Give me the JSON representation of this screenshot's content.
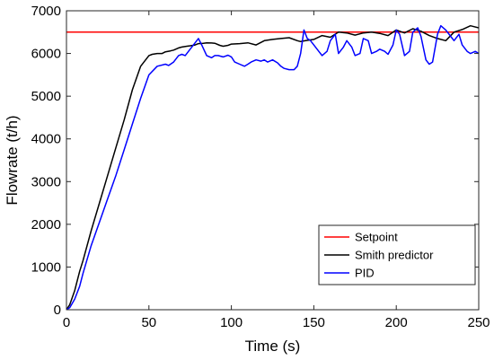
{
  "chart_data": {
    "type": "line",
    "title": "",
    "xlabel": "Time (s)",
    "ylabel": "Flowrate (t/h)",
    "xlim": [
      0,
      250
    ],
    "ylim": [
      0,
      7000
    ],
    "xticks": [
      0,
      50,
      100,
      150,
      200,
      250
    ],
    "yticks": [
      0,
      1000,
      2000,
      3000,
      4000,
      5000,
      6000,
      7000
    ],
    "grid": false,
    "legend_position": "bottom-right",
    "series": [
      {
        "name": "Setpoint",
        "color": "#ff0000",
        "x": [
          0,
          250
        ],
        "y": [
          6500,
          6500
        ]
      },
      {
        "name": "Smith predictor",
        "color": "#000000",
        "x": [
          0,
          2,
          5,
          8,
          10,
          15,
          20,
          25,
          30,
          35,
          40,
          45,
          50,
          52,
          55,
          58,
          60,
          63,
          65,
          68,
          70,
          73,
          75,
          78,
          80,
          83,
          85,
          88,
          90,
          93,
          95,
          98,
          100,
          105,
          110,
          115,
          120,
          125,
          130,
          135,
          140,
          142,
          145,
          150,
          155,
          160,
          165,
          170,
          175,
          180,
          185,
          190,
          195,
          200,
          205,
          210,
          215,
          220,
          225,
          230,
          235,
          240,
          245,
          250
        ],
        "y": [
          0,
          120,
          450,
          900,
          1150,
          1850,
          2500,
          3150,
          3800,
          4450,
          5150,
          5700,
          5950,
          5980,
          6000,
          6000,
          6040,
          6060,
          6080,
          6130,
          6150,
          6170,
          6180,
          6200,
          6230,
          6240,
          6250,
          6245,
          6240,
          6190,
          6170,
          6190,
          6220,
          6230,
          6250,
          6200,
          6300,
          6330,
          6350,
          6370,
          6300,
          6280,
          6300,
          6330,
          6420,
          6380,
          6500,
          6480,
          6430,
          6480,
          6500,
          6470,
          6420,
          6550,
          6480,
          6580,
          6520,
          6420,
          6350,
          6300,
          6500,
          6560,
          6650,
          6600
        ]
      },
      {
        "name": "PID",
        "color": "#0000ff",
        "x": [
          0,
          2,
          5,
          8,
          10,
          15,
          20,
          25,
          30,
          35,
          40,
          45,
          50,
          55,
          60,
          62,
          65,
          68,
          70,
          72,
          75,
          78,
          80,
          82,
          85,
          88,
          90,
          92,
          95,
          98,
          100,
          102,
          105,
          108,
          110,
          112,
          115,
          118,
          120,
          122,
          125,
          128,
          130,
          132,
          135,
          138,
          140,
          142,
          144,
          146,
          148,
          150,
          153,
          155,
          158,
          160,
          163,
          165,
          168,
          170,
          173,
          175,
          178,
          180,
          183,
          185,
          188,
          190,
          193,
          195,
          198,
          200,
          202,
          205,
          208,
          210,
          213,
          215,
          218,
          220,
          222,
          225,
          227,
          230,
          233,
          235,
          238,
          240,
          243,
          245,
          248,
          250
        ],
        "y": [
          0,
          50,
          250,
          550,
          850,
          1500,
          2050,
          2600,
          3150,
          3750,
          4350,
          4950,
          5500,
          5700,
          5750,
          5720,
          5800,
          5950,
          5980,
          5950,
          6100,
          6250,
          6350,
          6200,
          5950,
          5900,
          5950,
          5950,
          5920,
          5960,
          5920,
          5800,
          5750,
          5700,
          5750,
          5800,
          5850,
          5820,
          5850,
          5800,
          5850,
          5780,
          5700,
          5650,
          5620,
          5620,
          5700,
          6000,
          6550,
          6350,
          6300,
          6200,
          6050,
          5950,
          6050,
          6300,
          6450,
          6000,
          6150,
          6300,
          6150,
          5950,
          6000,
          6350,
          6300,
          6000,
          6050,
          6100,
          6050,
          5980,
          6200,
          6550,
          6450,
          5950,
          6050,
          6500,
          6600,
          6400,
          5850,
          5750,
          5800,
          6450,
          6650,
          6550,
          6400,
          6300,
          6450,
          6200,
          6050,
          6000,
          6050,
          6000
        ]
      }
    ]
  }
}
